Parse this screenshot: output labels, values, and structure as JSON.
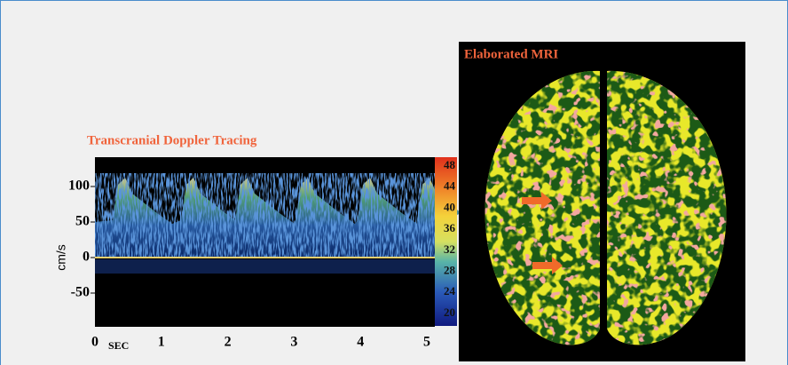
{
  "doppler": {
    "title": "Transcranial Doppler Tracing",
    "y_label": "cm/s",
    "y_ticks": [
      100,
      50,
      0,
      -50
    ],
    "x_ticks": [
      0,
      1,
      2,
      3,
      4,
      5
    ],
    "x_unit": "SEC",
    "scale_ticks": [
      48,
      44,
      40,
      36,
      32,
      28,
      24,
      20
    ]
  },
  "mri": {
    "title": "Elaborated MRI"
  }
}
